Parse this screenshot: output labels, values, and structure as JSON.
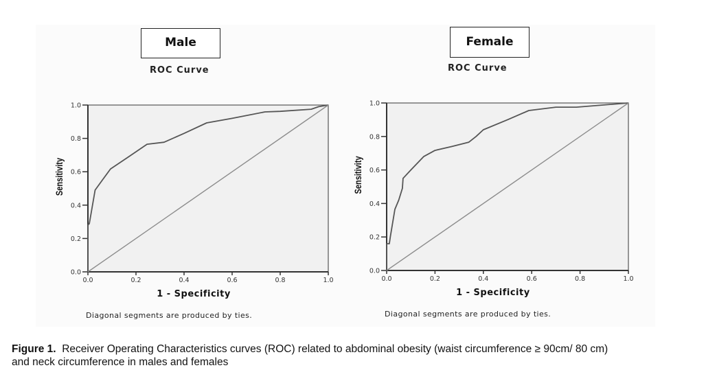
{
  "caption": {
    "label": "Figure 1.",
    "line1": "Receiver Operating Characteristics curves (ROC) related to abdominal obesity (waist circumference ≥ 90cm/ 80 cm)",
    "line2": "and neck circumference in males and females"
  },
  "chart_data": [
    {
      "type": "line",
      "panel_label": "Male",
      "title": "ROC Curve",
      "xlabel": "1 - Specificity",
      "ylabel": "Sensitivity",
      "footnote": "Diagonal segments are produced by ties.",
      "xlim": [
        0,
        1
      ],
      "ylim": [
        0,
        1
      ],
      "xticks": [
        "0.0",
        "0.2",
        "0.4",
        "0.6",
        "0.8",
        "1.0"
      ],
      "yticks": [
        "0.0",
        "0.2",
        "0.4",
        "0.6",
        "0.8",
        "1.0"
      ],
      "grid": false,
      "series": [
        {
          "name": "ROC curve",
          "x": [
            0,
            0,
            0.006,
            0.03,
            0.06,
            0.094,
            0.17,
            0.246,
            0.317,
            0.4,
            0.494,
            0.6,
            0.737,
            0.8,
            0.929,
            0.96,
            1.0
          ],
          "y": [
            0,
            0.28,
            0.29,
            0.49,
            0.55,
            0.617,
            0.69,
            0.765,
            0.777,
            0.83,
            0.893,
            0.92,
            0.959,
            0.962,
            0.975,
            0.99,
            1.0
          ]
        },
        {
          "name": "Reference line",
          "x": [
            0,
            1
          ],
          "y": [
            0,
            1
          ]
        }
      ]
    },
    {
      "type": "line",
      "panel_label": "Female",
      "title": "ROC Curve",
      "xlabel": "1 - Specificity",
      "ylabel": "Sensitivity",
      "footnote": "Diagonal segments are produced by ties.",
      "xlim": [
        0,
        1
      ],
      "ylim": [
        0,
        1
      ],
      "xticks": [
        "0.0",
        "0.2",
        "0.4",
        "0.6",
        "0.8",
        "1.0"
      ],
      "yticks": [
        "0.0",
        "0.2",
        "0.4",
        "0.6",
        "0.8",
        "1.0"
      ],
      "grid": false,
      "series": [
        {
          "name": "ROC curve",
          "x": [
            0,
            0,
            0.011,
            0.015,
            0.034,
            0.05,
            0.065,
            0.068,
            0.1,
            0.153,
            0.2,
            0.27,
            0.34,
            0.37,
            0.4,
            0.5,
            0.588,
            0.7,
            0.785,
            1.0
          ],
          "y": [
            0,
            0.16,
            0.16,
            0.2,
            0.365,
            0.42,
            0.49,
            0.55,
            0.6,
            0.68,
            0.717,
            0.74,
            0.766,
            0.8,
            0.84,
            0.9,
            0.955,
            0.975,
            0.975,
            1.0
          ]
        },
        {
          "name": "Reference line",
          "x": [
            0,
            1
          ],
          "y": [
            0,
            1
          ]
        }
      ]
    }
  ]
}
